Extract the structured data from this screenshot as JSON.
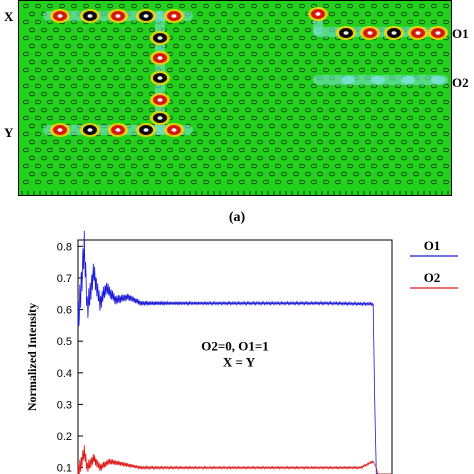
{
  "panel_a": {
    "caption": "(a)",
    "port_labels": {
      "input_x": "X",
      "input_y": "Y",
      "output_1": "O1",
      "output_2": "O2"
    },
    "colors": {
      "background": "#22d11b",
      "hot": "#d4190f",
      "cold": "#0a0a0a",
      "mid": "#ffd400",
      "cyan": "#7ee6dc",
      "hole": "#123a12"
    }
  },
  "chart_data": {
    "type": "line",
    "title": "",
    "annotation_lines": [
      "O2=0, O1=1",
      "X = Y"
    ],
    "ylabel": "Normalized Intensity",
    "xlabel": "",
    "yticks": [
      0.1,
      0.2,
      0.3,
      0.4,
      0.5,
      0.6,
      0.7,
      0.8
    ],
    "ylim": [
      0.08,
      0.82
    ],
    "x_range": [
      0,
      1
    ],
    "grid": false,
    "legend_placement": "right",
    "series": [
      {
        "name": "O1",
        "color": "#1a1ad8",
        "x": [
          0.0,
          0.02,
          0.03,
          0.05,
          0.07,
          0.09,
          0.12,
          0.16,
          0.2,
          0.25,
          0.3,
          0.4,
          0.5,
          0.6,
          0.7,
          0.8,
          0.9,
          0.94,
          0.945,
          0.95
        ],
        "y": [
          0.55,
          0.8,
          0.6,
          0.72,
          0.62,
          0.67,
          0.63,
          0.64,
          0.62,
          0.62,
          0.62,
          0.62,
          0.62,
          0.62,
          0.62,
          0.62,
          0.618,
          0.618,
          0.3,
          0.08
        ]
      },
      {
        "name": "O2",
        "color": "#e01a1a",
        "x": [
          0.0,
          0.02,
          0.03,
          0.05,
          0.07,
          0.1,
          0.15,
          0.2,
          0.3,
          0.4,
          0.5,
          0.6,
          0.7,
          0.8,
          0.9,
          0.94,
          0.95,
          0.955
        ],
        "y": [
          0.08,
          0.15,
          0.1,
          0.13,
          0.1,
          0.12,
          0.11,
          0.1,
          0.1,
          0.1,
          0.1,
          0.1,
          0.1,
          0.1,
          0.1,
          0.12,
          0.1,
          0.08
        ]
      }
    ]
  }
}
